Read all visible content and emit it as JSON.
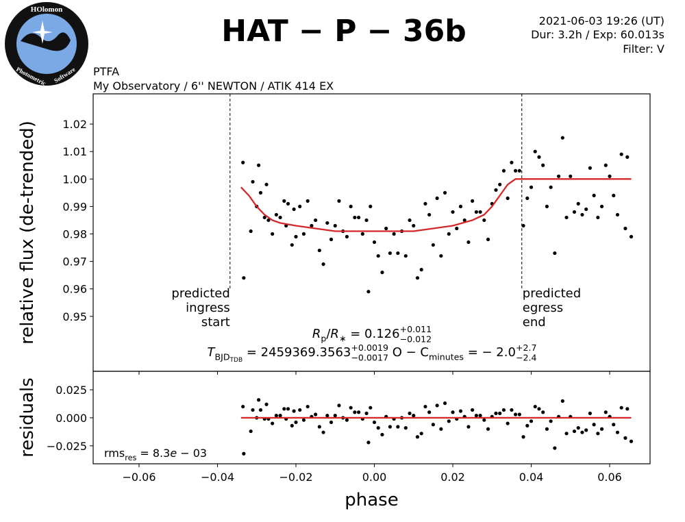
{
  "header": {
    "title": "HAT − P − 36b",
    "info": [
      "2021-06-03 19:26 (UT)",
      "Dur: 3.2h / Exp: 60.013s",
      "Filter: V"
    ],
    "observer": [
      "PTFA",
      "My Observatory / 6''  NEWTON / ATIK 414 EX"
    ],
    "logo": [
      "HOlomon",
      "Photometric",
      "Software"
    ]
  },
  "chart_data": [
    {
      "type": "scatter",
      "ylabel": "relative flux (de-trended)",
      "xlim": [
        -0.0717,
        0.0703
      ],
      "ylim": [
        0.93,
        1.031
      ],
      "yticks": [
        0.95,
        0.96,
        0.97,
        0.98,
        0.99,
        {
          "value": 1,
          "label": "1.00"
        },
        1.01,
        1.02
      ],
      "points": {
        "color": "#000000",
        "x": [
          -0.0335,
          -0.0333,
          -0.0315,
          -0.031,
          -0.03,
          -0.0295,
          -0.029,
          -0.028,
          -0.0275,
          -0.027,
          -0.026,
          -0.025,
          -0.024,
          -0.023,
          -0.0225,
          -0.022,
          -0.021,
          -0.0205,
          -0.02,
          -0.019,
          -0.018,
          -0.017,
          -0.016,
          -0.015,
          -0.014,
          -0.013,
          -0.012,
          -0.011,
          -0.01,
          -0.009,
          -0.008,
          -0.007,
          -0.006,
          -0.005,
          -0.004,
          -0.003,
          -0.002,
          -0.0015,
          -0.001,
          0.0,
          0.001,
          0.002,
          0.003,
          0.004,
          0.005,
          0.006,
          0.007,
          0.008,
          0.009,
          0.01,
          0.011,
          0.012,
          0.013,
          0.014,
          0.015,
          0.016,
          0.017,
          0.018,
          0.019,
          0.02,
          0.021,
          0.022,
          0.023,
          0.024,
          0.025,
          0.026,
          0.027,
          0.028,
          0.029,
          0.03,
          0.031,
          0.032,
          0.033,
          0.034,
          0.035,
          0.036,
          0.037,
          0.038,
          0.039,
          0.04,
          0.041,
          0.042,
          0.043,
          0.044,
          0.045,
          0.046,
          0.047,
          0.048,
          0.049,
          0.05,
          0.051,
          0.052,
          0.053,
          0.054,
          0.055,
          0.056,
          0.057,
          0.058,
          0.059,
          0.06,
          0.061,
          0.062,
          0.063,
          0.064,
          0.0645,
          0.0655
        ],
        "y": [
          1.006,
          0.964,
          0.981,
          0.999,
          0.99,
          1.005,
          0.995,
          0.986,
          0.998,
          0.985,
          0.98,
          0.987,
          0.986,
          0.992,
          0.983,
          0.991,
          0.976,
          0.989,
          0.979,
          0.99,
          0.98,
          0.992,
          0.983,
          0.985,
          0.974,
          0.969,
          0.984,
          0.978,
          0.983,
          0.992,
          0.981,
          0.979,
          0.99,
          0.986,
          0.986,
          0.98,
          0.985,
          0.959,
          0.99,
          0.977,
          0.972,
          0.966,
          0.982,
          0.973,
          0.98,
          0.973,
          0.981,
          0.972,
          0.985,
          0.983,
          0.964,
          0.967,
          0.991,
          0.987,
          0.976,
          0.993,
          0.972,
          0.995,
          0.98,
          0.988,
          0.982,
          0.99,
          0.985,
          0.977,
          0.992,
          0.988,
          0.988,
          0.985,
          0.978,
          0.991,
          0.996,
          0.998,
          1.003,
          0.993,
          1.006,
          1.003,
          1.003,
          0.983,
          0.993,
          0.997,
          1.01,
          1.008,
          1.005,
          0.99,
          0.997,
          0.973,
          1.001,
          1.015,
          0.986,
          1.001,
          0.988,
          0.991,
          0.987,
          0.989,
          1.004,
          0.994,
          0.986,
          0.99,
          1.005,
          1.001,
          0.994,
          0.987,
          1.009,
          0.982,
          1.008,
          0.979
        ]
      },
      "model": {
        "color": "#d62728",
        "x": [
          -0.034,
          -0.032,
          -0.03,
          -0.028,
          -0.026,
          -0.024,
          -0.02,
          -0.015,
          -0.01,
          -0.005,
          0,
          0.005,
          0.01,
          0.015,
          0.02,
          0.025,
          0.028,
          0.03,
          0.032,
          0.034,
          0.036,
          0.038,
          0.0655
        ],
        "y": [
          0.997,
          0.994,
          0.99,
          0.987,
          0.985,
          0.984,
          0.983,
          0.982,
          0.981,
          0.981,
          0.981,
          0.981,
          0.981,
          0.982,
          0.983,
          0.985,
          0.987,
          0.99,
          0.994,
          0.998,
          1.0,
          1.0,
          1.0
        ]
      },
      "vlines": [
        {
          "x": -0.0368,
          "label": [
            "predicted",
            "ingress",
            "start"
          ]
        },
        {
          "x": 0.0376,
          "label": [
            "predicted",
            "egress",
            "end"
          ]
        }
      ],
      "fit_text": [
        [
          {
            "t": "R",
            "s": "it"
          },
          {
            "t": "p",
            "s": "sub"
          },
          {
            "t": "/"
          },
          {
            "t": "R",
            "s": "it"
          },
          {
            "t": "∗",
            "s": "sub"
          },
          {
            "t": " = 0.126"
          },
          {
            "t": "+0.011",
            "s": "sup"
          },
          {
            "t": "−0.012",
            "s": "lo"
          }
        ],
        [
          {
            "t": "T",
            "s": "it"
          },
          {
            "t": "BJD",
            "s": "sub"
          },
          {
            "t": "TDB",
            "s": "subsub"
          },
          {
            "t": " = 2459369.3563"
          },
          {
            "t": "+0.0019",
            "s": "sup"
          },
          {
            "t": "−0.0017",
            "s": "lo"
          },
          {
            "t": "   O − C"
          },
          {
            "t": "minutes",
            "s": "sub"
          },
          {
            "t": " = − 2.0"
          },
          {
            "t": "+2.7",
            "s": "sup"
          },
          {
            "t": "−2.4",
            "s": "lo"
          }
        ]
      ]
    },
    {
      "type": "scatter",
      "ylabel": "residuals",
      "xlabel": "phase",
      "xlim": [
        -0.0717,
        0.0703
      ],
      "ylim": [
        -0.041,
        0.0415
      ],
      "xticks": [
        {
          "value": -0.06,
          "label": "−0.06"
        },
        {
          "value": -0.04,
          "label": "−0.04"
        },
        {
          "value": -0.02,
          "label": "−0.02"
        },
        {
          "value": 0,
          "label": "0.00"
        },
        0.02,
        0.04,
        0.06
      ],
      "yticks": [
        {
          "value": -0.025,
          "label": "−0.025"
        },
        {
          "value": 0,
          "label": "0.000"
        },
        0.025
      ],
      "points": {
        "color": "#000000",
        "x": [
          -0.0335,
          -0.0333,
          -0.0315,
          -0.031,
          -0.03,
          -0.0295,
          -0.029,
          -0.028,
          -0.0275,
          -0.027,
          -0.026,
          -0.025,
          -0.024,
          -0.023,
          -0.0225,
          -0.022,
          -0.021,
          -0.0205,
          -0.02,
          -0.019,
          -0.018,
          -0.017,
          -0.016,
          -0.015,
          -0.014,
          -0.013,
          -0.012,
          -0.011,
          -0.01,
          -0.009,
          -0.008,
          -0.007,
          -0.006,
          -0.005,
          -0.004,
          -0.003,
          -0.002,
          -0.0015,
          -0.001,
          0.0,
          0.001,
          0.002,
          0.003,
          0.004,
          0.005,
          0.006,
          0.007,
          0.008,
          0.009,
          0.01,
          0.011,
          0.012,
          0.013,
          0.014,
          0.015,
          0.016,
          0.017,
          0.018,
          0.019,
          0.02,
          0.021,
          0.022,
          0.023,
          0.024,
          0.025,
          0.026,
          0.027,
          0.028,
          0.029,
          0.03,
          0.031,
          0.032,
          0.033,
          0.034,
          0.035,
          0.036,
          0.037,
          0.038,
          0.039,
          0.04,
          0.041,
          0.042,
          0.043,
          0.044,
          0.045,
          0.046,
          0.047,
          0.048,
          0.049,
          0.05,
          0.051,
          0.052,
          0.053,
          0.054,
          0.055,
          0.056,
          0.057,
          0.058,
          0.059,
          0.06,
          0.061,
          0.062,
          0.063,
          0.064,
          0.0645,
          0.0655
        ],
        "y": [
          0.01,
          -0.032,
          -0.012,
          0.007,
          0.0,
          0.016,
          0.007,
          -0.001,
          0.012,
          -0.001,
          -0.005,
          0.002,
          0.002,
          0.008,
          -0.001,
          0.008,
          -0.007,
          0.006,
          -0.004,
          0.007,
          -0.002,
          0.01,
          0.001,
          0.003,
          -0.008,
          -0.013,
          0.002,
          -0.004,
          0.002,
          0.011,
          0.0,
          -0.002,
          0.009,
          0.005,
          0.005,
          -0.001,
          0.004,
          -0.022,
          0.009,
          -0.004,
          -0.009,
          -0.015,
          0.001,
          -0.008,
          -0.001,
          -0.008,
          0.0,
          -0.009,
          0.004,
          0.002,
          -0.017,
          -0.014,
          0.01,
          0.005,
          -0.006,
          0.011,
          -0.01,
          0.013,
          -0.003,
          0.005,
          -0.001,
          0.006,
          0.001,
          -0.008,
          0.007,
          0.002,
          0.002,
          -0.002,
          -0.01,
          0.001,
          0.004,
          0.004,
          0.007,
          -0.005,
          0.007,
          0.003,
          0.003,
          -0.017,
          -0.007,
          -0.003,
          0.01,
          0.008,
          0.005,
          -0.01,
          -0.003,
          -0.027,
          0.001,
          0.015,
          -0.014,
          0.001,
          -0.012,
          -0.009,
          -0.013,
          -0.011,
          0.004,
          -0.006,
          -0.014,
          -0.01,
          0.005,
          0.001,
          -0.006,
          -0.013,
          0.009,
          -0.018,
          0.008,
          -0.021
        ]
      },
      "model": {
        "color": "#d62728",
        "x": [
          -0.034,
          0.0655
        ],
        "y": [
          0,
          0
        ]
      },
      "rms_text": [
        {
          "t": "rms"
        },
        {
          "t": "res",
          "s": "sub"
        },
        {
          "t": " = 8.3"
        },
        {
          "t": "e",
          "s": "it"
        },
        {
          "t": " − 03"
        }
      ]
    }
  ]
}
